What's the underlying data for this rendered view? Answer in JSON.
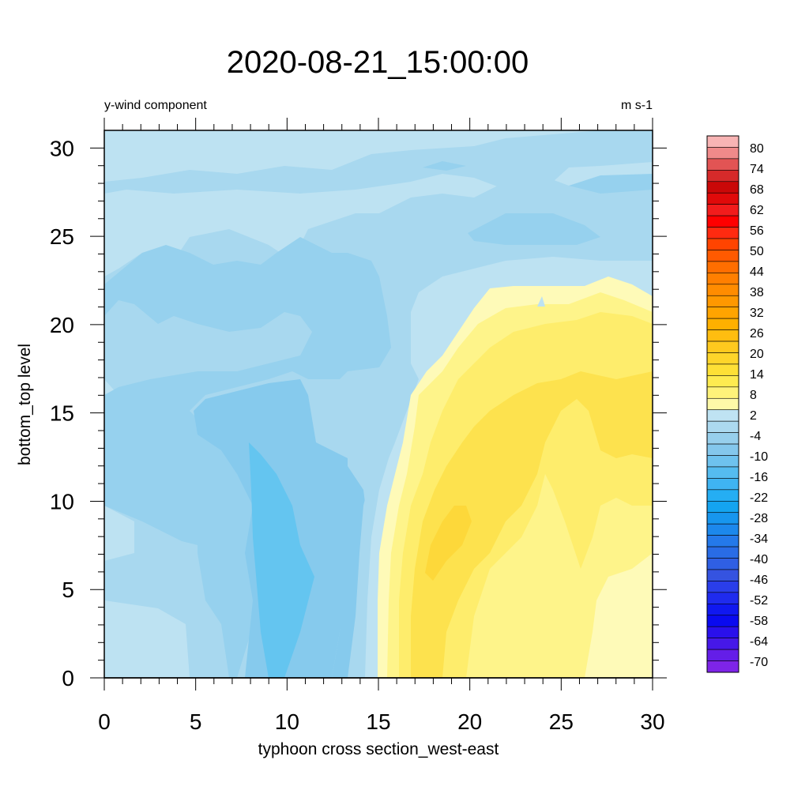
{
  "chart_data": {
    "type": "heatmap",
    "title": "2020-08-21_15:00:00",
    "left_string": "y-wind component",
    "right_string": "m s-1",
    "xlabel": "typhoon cross section_west-east",
    "ylabel": "bottom_top level",
    "xlim": [
      0,
      30
    ],
    "ylim": [
      0,
      31
    ],
    "xticks": [
      0,
      5,
      10,
      15,
      20,
      25,
      30
    ],
    "yticks": [
      0,
      5,
      10,
      15,
      20,
      25,
      30
    ],
    "xtick_labels": [
      "0",
      "5",
      "10",
      "15",
      "20",
      "25",
      "30"
    ],
    "ytick_labels": [
      "0",
      "5",
      "10",
      "15",
      "20",
      "25",
      "30"
    ],
    "colorbar_labels": [
      "80",
      "74",
      "68",
      "62",
      "56",
      "50",
      "44",
      "38",
      "32",
      "26",
      "20",
      "14",
      "8",
      "2",
      "-4",
      "-10",
      "-16",
      "-22",
      "-28",
      "-34",
      "-40",
      "-46",
      "-52",
      "-58",
      "-64",
      "-70"
    ],
    "colorbar_colors": [
      "#f8b4b4",
      "#f08a8a",
      "#e25454",
      "#d62a2a",
      "#ca0808",
      "#e00a0a",
      "#f21c1c",
      "#ff0000",
      "#ff2a10",
      "#ff4400",
      "#ff5a00",
      "#ff6e00",
      "#ff7f00",
      "#ff8c00",
      "#ff9800",
      "#ffa400",
      "#ffb000",
      "#ffbd10",
      "#ffc91e",
      "#fed52a",
      "#fee036",
      "#feeb50",
      "#fef27a",
      "#fef9a8",
      "#bfe3f3",
      "#acd9ef",
      "#97cfec",
      "#84c7ec",
      "#6ec2ee",
      "#55bcf0",
      "#3fb4f2",
      "#25aef3",
      "#14a4f0",
      "#1796ee",
      "#1c88ec",
      "#2479ea",
      "#296ce6",
      "#2f5fe3",
      "#3553e0",
      "#2a3eea",
      "#1f2bee",
      "#1018f0",
      "#0a0af0",
      "#2a10ec",
      "#4618e8",
      "#641ee8",
      "#7e24e8"
    ],
    "grid": false,
    "legend": "right",
    "filled_levels": [
      {
        "level": "<=2",
        "color": "#bde2f2"
      },
      {
        "level": "-4",
        "color": "#a8d8ef"
      },
      {
        "level": "-10",
        "color": "#96d1ee"
      },
      {
        "level": "-16",
        "color": "#86caed"
      },
      {
        "level": "-22",
        "color": "#64c5f0"
      },
      {
        "level": "8",
        "color": "#fefab8"
      },
      {
        "level": "14",
        "color": "#fef48a"
      },
      {
        "level": "20",
        "color": "#feed6c"
      },
      {
        "level": "26",
        "color": "#fde24e"
      },
      {
        "level": "32",
        "color": "#fdd83a"
      }
    ]
  }
}
